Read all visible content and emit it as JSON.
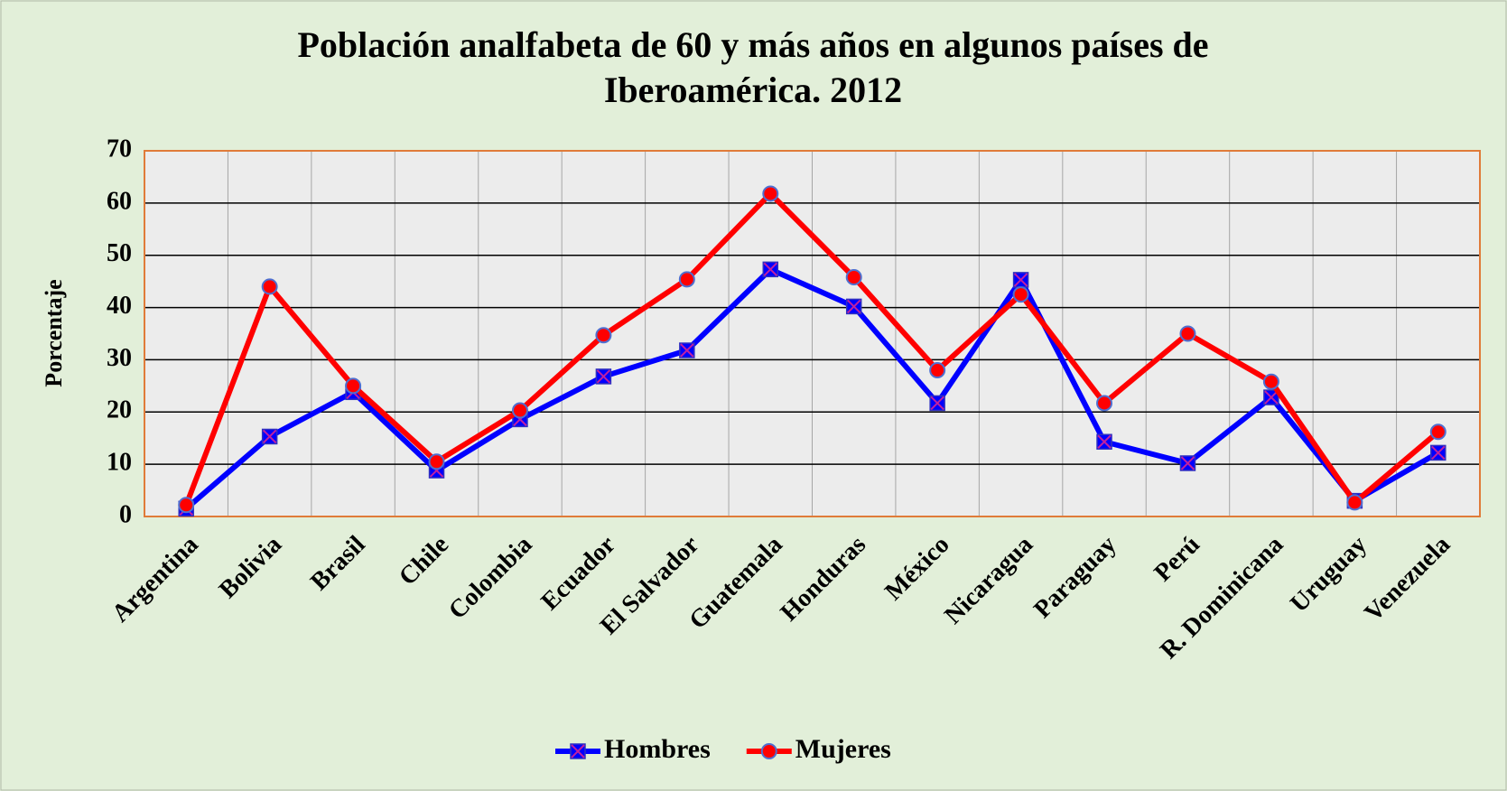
{
  "chart_data": {
    "type": "line",
    "title": "Población analfabeta de 60 y más años en algunos países de",
    "subtitle": "Iberoamérica. 2012",
    "y_label": "Porcentaje",
    "categories": [
      "Argentina",
      "Bolivia",
      "Brasil",
      "Chile",
      "Colombia",
      "Ecuador",
      "El Salvador",
      "Guatemala",
      "Honduras",
      "México",
      "Nicaragua",
      "Paraguay",
      "Perú",
      "R. Dominicana",
      "Uruguay",
      "Venezuela"
    ],
    "series": [
      {
        "name": "Hombres",
        "color": "#0000ff",
        "marker": "x-square",
        "values": [
          1.5,
          15.3,
          23.8,
          8.8,
          18.6,
          26.8,
          31.8,
          47.3,
          40.2,
          21.7,
          45.3,
          14.3,
          10.2,
          22.8,
          3.0,
          12.2
        ]
      },
      {
        "name": "Mujeres",
        "color": "#ff0000",
        "marker": "circle",
        "values": [
          2.2,
          44.0,
          25.0,
          10.5,
          20.3,
          34.7,
          45.4,
          61.8,
          45.8,
          28.0,
          42.5,
          21.7,
          35.0,
          25.8,
          2.7,
          16.2
        ]
      }
    ],
    "ylim": [
      0,
      70
    ],
    "yticks": [
      0,
      10,
      20,
      30,
      40,
      50,
      60,
      70
    ],
    "grid": true,
    "legend": "bottom"
  }
}
